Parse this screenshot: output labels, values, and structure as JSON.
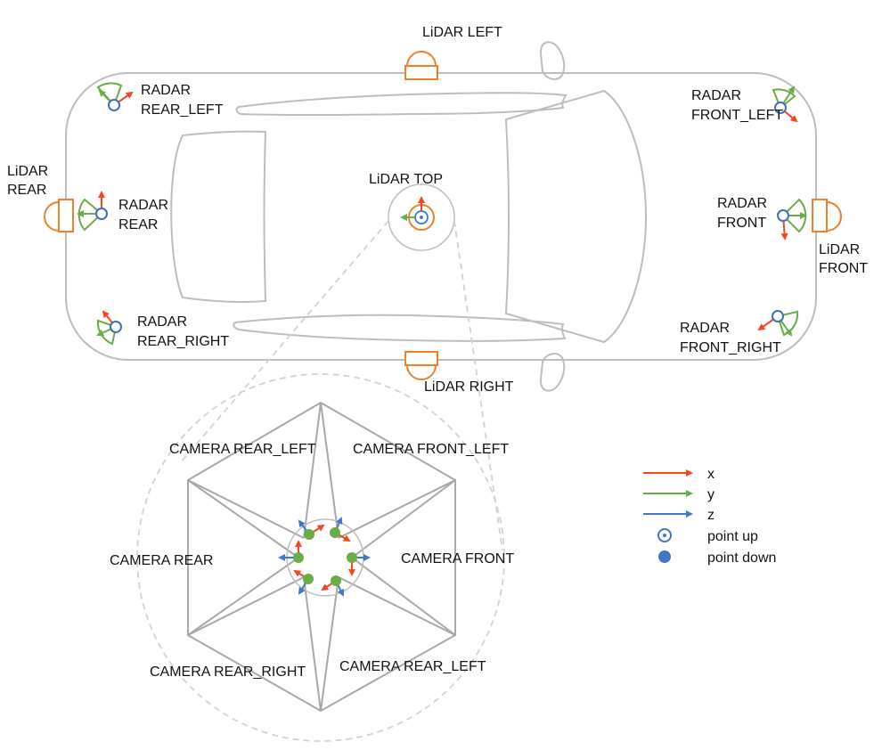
{
  "colors": {
    "x_axis": "#f4471f",
    "y_axis": "#6aac46",
    "z_axis": "#3f78c8",
    "lidar": "#f07f2b",
    "radar_fan": "#6aac46",
    "outline": "#bdbdbd"
  },
  "labels": {
    "lidar_left": "LiDAR LEFT",
    "lidar_right": "LiDAR RIGHT",
    "lidar_top": "LiDAR TOP",
    "lidar_rear_1": "LiDAR",
    "lidar_rear_2": "REAR",
    "lidar_front_1": "LiDAR",
    "lidar_front_2": "FRONT",
    "radar_rear_left_1": "RADAR",
    "radar_rear_left_2": "REAR_LEFT",
    "radar_rear_1": "RADAR",
    "radar_rear_2": "REAR",
    "radar_rear_right_1": "RADAR",
    "radar_rear_right_2": "REAR_RIGHT",
    "radar_front_left_1": "RADAR",
    "radar_front_left_2": "FRONT_LEFT",
    "radar_front_1": "RADAR",
    "radar_front_2": "FRONT",
    "radar_front_right_1": "RADAR",
    "radar_front_right_2": "FRONT_RIGHT",
    "camera_rear_left_top": "CAMERA REAR_LEFT",
    "camera_front_left": "CAMERA FRONT_LEFT",
    "camera_rear": "CAMERA REAR",
    "camera_front": "CAMERA FRONT",
    "camera_rear_right": "CAMERA REAR_RIGHT",
    "camera_rear_left_bottom": "CAMERA REAR_LEFT"
  },
  "legend": {
    "x": "x",
    "y": "y",
    "z": "z",
    "point_up": "point up",
    "point_down": "point down"
  }
}
